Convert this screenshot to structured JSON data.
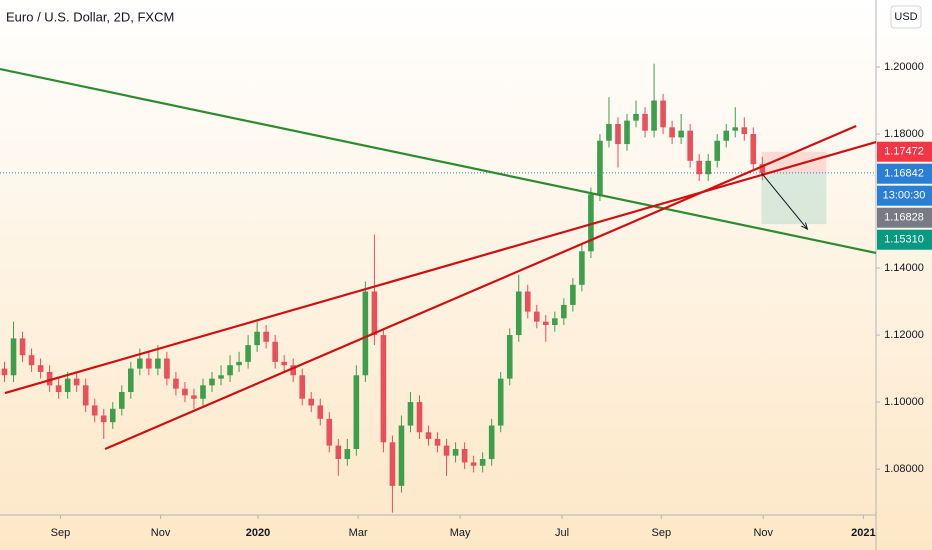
{
  "chart_data": {
    "type": "candlestick",
    "title": "Euro / U.S. Dollar, 2D, FXCM",
    "currency": "USD",
    "up_color": "#3d9e4c",
    "down_color": "#e8505b",
    "open": [
      1.11,
      1.108,
      1.119,
      1.114,
      1.111,
      1.109,
      1.105,
      1.103,
      1.107,
      1.105,
      1.099,
      1.096,
      1.094,
      1.098,
      1.103,
      1.11,
      1.113,
      1.11,
      1.113,
      1.107,
      1.104,
      1.102,
      1.101,
      1.105,
      1.107,
      1.108,
      1.111,
      1.112,
      1.117,
      1.121,
      1.118,
      1.112,
      1.111,
      1.108,
      1.101,
      1.099,
      1.095,
      1.087,
      1.083,
      1.086,
      1.108,
      1.133,
      1.12,
      1.088,
      1.075,
      1.093,
      1.1,
      1.091,
      1.089,
      1.087,
      1.084,
      1.086,
      1.082,
      1.081,
      1.083,
      1.093,
      1.107,
      1.12,
      1.133,
      1.127,
      1.124,
      1.123,
      1.125,
      1.129,
      1.135,
      1.145,
      1.162,
      1.178,
      1.183,
      1.177,
      1.184,
      1.186,
      1.181,
      1.19,
      1.182,
      1.179,
      1.181,
      1.172,
      1.168,
      1.172,
      1.178,
      1.181,
      1.182,
      1.18,
      1.171
    ],
    "high": [
      1.112,
      1.124,
      1.121,
      1.116,
      1.113,
      1.111,
      1.107,
      1.109,
      1.109,
      1.107,
      1.101,
      1.098,
      1.1,
      1.105,
      1.112,
      1.116,
      1.115,
      1.117,
      1.115,
      1.109,
      1.106,
      1.104,
      1.107,
      1.109,
      1.111,
      1.114,
      1.115,
      1.12,
      1.124,
      1.123,
      1.12,
      1.114,
      1.113,
      1.11,
      1.103,
      1.101,
      1.097,
      1.089,
      1.089,
      1.111,
      1.136,
      1.15,
      1.122,
      1.09,
      1.096,
      1.103,
      1.102,
      1.093,
      1.091,
      1.089,
      1.088,
      1.088,
      1.084,
      1.085,
      1.095,
      1.109,
      1.122,
      1.138,
      1.135,
      1.129,
      1.126,
      1.127,
      1.131,
      1.137,
      1.147,
      1.164,
      1.18,
      1.191,
      1.185,
      1.186,
      1.19,
      1.188,
      1.201,
      1.192,
      1.184,
      1.186,
      1.183,
      1.174,
      1.174,
      1.18,
      1.183,
      1.188,
      1.185,
      1.182,
      1.1732
    ],
    "low": [
      1.106,
      1.106,
      1.112,
      1.109,
      1.107,
      1.103,
      1.101,
      1.101,
      1.103,
      1.097,
      1.094,
      1.089,
      1.092,
      1.096,
      1.101,
      1.108,
      1.108,
      1.108,
      1.105,
      1.102,
      1.1,
      1.098,
      1.099,
      1.103,
      1.105,
      1.106,
      1.109,
      1.11,
      1.115,
      1.116,
      1.11,
      1.109,
      1.106,
      1.099,
      1.097,
      1.093,
      1.085,
      1.078,
      1.081,
      1.084,
      1.106,
      1.117,
      1.085,
      1.067,
      1.073,
      1.091,
      1.089,
      1.087,
      1.085,
      1.078,
      1.082,
      1.08,
      1.079,
      1.079,
      1.081,
      1.091,
      1.105,
      1.118,
      1.125,
      1.122,
      1.118,
      1.121,
      1.123,
      1.127,
      1.133,
      1.143,
      1.16,
      1.176,
      1.17,
      1.175,
      1.182,
      1.179,
      1.179,
      1.18,
      1.177,
      1.177,
      1.17,
      1.166,
      1.166,
      1.17,
      1.176,
      1.179,
      1.178,
      1.169,
      1.1662
    ],
    "close": [
      1.108,
      1.119,
      1.114,
      1.111,
      1.109,
      1.105,
      1.103,
      1.107,
      1.105,
      1.099,
      1.096,
      1.094,
      1.098,
      1.103,
      1.11,
      1.113,
      1.11,
      1.113,
      1.107,
      1.104,
      1.102,
      1.101,
      1.105,
      1.107,
      1.108,
      1.111,
      1.112,
      1.117,
      1.121,
      1.118,
      1.112,
      1.111,
      1.108,
      1.101,
      1.099,
      1.095,
      1.087,
      1.083,
      1.086,
      1.108,
      1.133,
      1.12,
      1.088,
      1.075,
      1.093,
      1.1,
      1.091,
      1.089,
      1.087,
      1.084,
      1.086,
      1.082,
      1.081,
      1.083,
      1.093,
      1.107,
      1.12,
      1.133,
      1.127,
      1.124,
      1.123,
      1.125,
      1.129,
      1.135,
      1.145,
      1.162,
      1.178,
      1.183,
      1.177,
      1.184,
      1.186,
      1.181,
      1.19,
      1.182,
      1.179,
      1.181,
      1.172,
      1.168,
      1.172,
      1.178,
      1.181,
      1.182,
      1.18,
      1.171,
      1.1684
    ],
    "xlim": [
      -0.5,
      96.6
    ],
    "ylim": [
      1.0663,
      1.22
    ],
    "xticks": [
      {
        "value": 6.2,
        "label": "Sep"
      },
      {
        "value": 17.3,
        "label": "Nov"
      },
      {
        "value": 28.1,
        "label": "2020"
      },
      {
        "value": 39.2,
        "label": "Mar"
      },
      {
        "value": 50.5,
        "label": "May"
      },
      {
        "value": 61.8,
        "label": "Jul"
      },
      {
        "value": 72.8,
        "label": "Sep"
      },
      {
        "value": 84.1,
        "label": "Nov"
      },
      {
        "value": 95.2,
        "label": "2021"
      }
    ],
    "yticks": [
      {
        "value": 1.08,
        "label": "1.08000"
      },
      {
        "value": 1.1,
        "label": "1.10000"
      },
      {
        "value": 1.12,
        "label": "1.12000"
      },
      {
        "value": 1.14,
        "label": "1.14000"
      },
      {
        "value": 1.18,
        "label": "1.18000"
      },
      {
        "value": 1.2,
        "label": "1.20000"
      }
    ],
    "lines": [
      {
        "color": "#2e8b2e",
        "x": [
          -0.5,
          96.6
        ],
        "y": [
          1.1994,
          1.1445
        ]
      },
      {
        "color": "#d01010",
        "x": [
          0.05,
          96.6
        ],
        "y": [
          1.1027,
          1.1776
        ]
      },
      {
        "color": "#d01010",
        "x": [
          11.15,
          94.4
        ],
        "y": [
          1.086,
          1.1824
        ]
      }
    ],
    "position": {
      "x": [
        83.9,
        91.1
      ],
      "entry": 1.16842,
      "stop": 1.17472,
      "target": 1.1531,
      "arrow_x": [
        83.9,
        89.0
      ],
      "arrow_y": [
        1.1684,
        1.1516
      ]
    },
    "last_price": 1.16842,
    "price_labels": [
      {
        "value": 1.17472,
        "label": "1.17472",
        "color": "#f23645"
      },
      {
        "value": 1.16842,
        "label": "1.16842",
        "color": "#2a7fd4"
      },
      {
        "value": 1.16828,
        "label": "1.16828",
        "color": "#787b86"
      },
      {
        "value": 1.1531,
        "label": "1.15310",
        "color": "#089981"
      }
    ],
    "countdown": "13:00:30"
  }
}
